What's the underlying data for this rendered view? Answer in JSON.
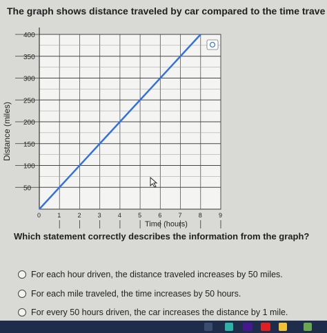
{
  "question": {
    "title": "The graph shows distance traveled by car compared to the time traveled.",
    "prompt": "Which statement correctly describes the information from the graph?",
    "options": [
      "For each hour driven, the distance traveled increases by 50 miles.",
      "For each mile traveled, the time increases by 50 hours.",
      "For every 50 hours driven, the car increases the distance by 1 mile."
    ]
  },
  "chart_data": {
    "type": "line",
    "title": "",
    "xlabel": "Time (hours)",
    "ylabel": "Distance (miles)",
    "xlim": [
      0,
      9
    ],
    "ylim": [
      0,
      400
    ],
    "x_ticks": [
      "0",
      "1",
      "2",
      "3",
      "4",
      "5",
      "6",
      "7",
      "8",
      "9"
    ],
    "y_ticks": [
      "50",
      "100",
      "150",
      "200",
      "250",
      "300",
      "350",
      "400"
    ],
    "grid": true,
    "series": [
      {
        "x": [
          0,
          1,
          2,
          3,
          4,
          5,
          6,
          7,
          8
        ],
        "y": [
          0,
          50,
          100,
          150,
          200,
          250,
          300,
          350,
          400
        ]
      }
    ],
    "line_color": "#2f6fe4",
    "zoom_icon": "zoom-icon"
  },
  "taskbar": {
    "icons": [
      "search-icon",
      "edge-icon",
      "kahoot-icon",
      "youtube-icon",
      "chrome-icon",
      "app-icon"
    ]
  }
}
